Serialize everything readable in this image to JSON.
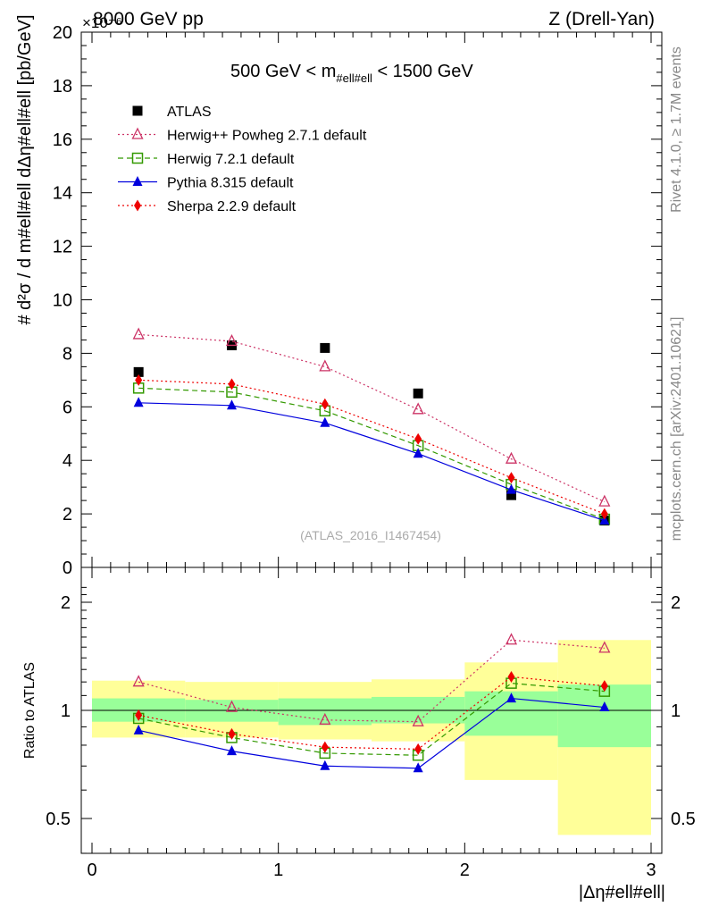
{
  "header": {
    "left": "8000 GeV pp",
    "right": "Z (Drell-Yan)",
    "multiplier": "×10⁻⁶"
  },
  "side_labels": {
    "rivet": "Rivet 4.1.0, ≥ 1.7M events",
    "mcplots": "mcplots.cern.ch [arXiv:2401.10621]"
  },
  "upper_panel": {
    "title_main": "500 GeV < m",
    "title_sub": "#ell#ell",
    "title_end": " < 1500 GeV",
    "ylabel": "# d²σ / d m#ell#ell dΔη#ell#ell [pb/GeV]",
    "watermark": "(ATLAS_2016_I1467454)"
  },
  "lower_panel": {
    "ylabel": "Ratio to ATLAS"
  },
  "xlabel": "|Δη#ell#ell|",
  "chart_data": [
    {
      "type": "scatter",
      "panel": "main",
      "title": "500 GeV < m#ell#ell < 1500 GeV",
      "xlabel": "|Δη#ell#ell|",
      "ylabel": "d²σ/dm dΔη [pb/GeV] ×10⁻⁶",
      "xlim": [
        0,
        3
      ],
      "ylim": [
        0,
        20
      ],
      "x_ticks": [
        0,
        1,
        2,
        3
      ],
      "y_ticks": [
        0,
        2,
        4,
        6,
        8,
        10,
        12,
        14,
        16,
        18,
        20
      ],
      "x": [
        0.25,
        0.75,
        1.25,
        1.75,
        2.25,
        2.75
      ],
      "series": [
        {
          "name": "ATLAS",
          "color": "#000000",
          "marker": "square-filled",
          "line": "none",
          "values": [
            7.3,
            8.3,
            8.2,
            6.5,
            2.7,
            1.75
          ]
        },
        {
          "name": "Herwig++ Powheg 2.7.1 default",
          "color": "#cc3366",
          "marker": "triangle-open",
          "line": "dotted",
          "values": [
            8.7,
            8.45,
            7.5,
            5.9,
            4.05,
            2.45
          ]
        },
        {
          "name": "Herwig 7.2.1 default",
          "color": "#339900",
          "marker": "square-open",
          "line": "dashed",
          "values": [
            6.7,
            6.55,
            5.85,
            4.55,
            3.1,
            1.8
          ]
        },
        {
          "name": "Pythia 8.315 default",
          "color": "#0000dd",
          "marker": "triangle-filled",
          "line": "solid",
          "values": [
            6.15,
            6.05,
            5.4,
            4.25,
            2.9,
            1.75
          ]
        },
        {
          "name": "Sherpa 2.2.9 default",
          "color": "#ee0000",
          "marker": "diamond-filled",
          "line": "dotted",
          "values": [
            7.0,
            6.85,
            6.1,
            4.8,
            3.35,
            2.0
          ]
        }
      ]
    },
    {
      "type": "line",
      "panel": "ratio",
      "xlabel": "|Δη#ell#ell|",
      "ylabel": "Ratio to ATLAS",
      "xlim": [
        0,
        3
      ],
      "ylim": [
        0.35,
        2.3
      ],
      "y_ticks": [
        0.5,
        1,
        2
      ],
      "x": [
        0.25,
        0.75,
        1.25,
        1.75,
        2.25,
        2.75
      ],
      "bin_edges": [
        0,
        0.5,
        1.0,
        1.5,
        2.0,
        2.5,
        3.0
      ],
      "bands": {
        "inner_color": "#99ff99",
        "outer_color": "#ffff99",
        "inner": [
          [
            0.93,
            1.08
          ],
          [
            0.93,
            1.07
          ],
          [
            0.91,
            1.08
          ],
          [
            0.92,
            1.09
          ],
          [
            0.85,
            1.13
          ],
          [
            0.79,
            1.18
          ]
        ],
        "outer": [
          [
            0.84,
            1.21
          ],
          [
            0.84,
            1.2
          ],
          [
            0.83,
            1.2
          ],
          [
            0.82,
            1.22
          ],
          [
            0.64,
            1.36
          ],
          [
            0.45,
            1.57
          ]
        ]
      },
      "series": [
        {
          "name": "Herwig++ Powheg 2.7.1 default",
          "color": "#cc3366",
          "marker": "triangle-open",
          "line": "dotted",
          "values": [
            1.2,
            1.02,
            0.94,
            0.93,
            1.57,
            1.49
          ]
        },
        {
          "name": "Herwig 7.2.1 default",
          "color": "#339900",
          "marker": "square-open",
          "line": "dashed",
          "values": [
            0.95,
            0.84,
            0.76,
            0.75,
            1.19,
            1.13
          ]
        },
        {
          "name": "Pythia 8.315 default",
          "color": "#0000dd",
          "marker": "triangle-filled",
          "line": "solid",
          "values": [
            0.88,
            0.77,
            0.7,
            0.69,
            1.08,
            1.02
          ]
        },
        {
          "name": "Sherpa 2.2.9 default",
          "color": "#ee0000",
          "marker": "diamond-filled",
          "line": "dotted",
          "values": [
            0.97,
            0.86,
            0.79,
            0.78,
            1.24,
            1.17
          ]
        }
      ]
    }
  ]
}
